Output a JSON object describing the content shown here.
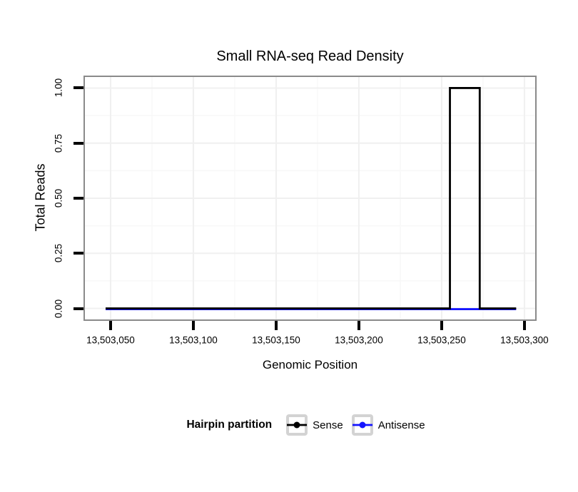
{
  "chart_data": {
    "type": "line",
    "title": "Small RNA-seq Read Density",
    "xlabel": "Genomic Position",
    "ylabel": "Total Reads",
    "xlim": [
      13503034.5,
      13503306.5
    ],
    "ylim": [
      -0.05,
      1.05
    ],
    "grid": true,
    "x_ticks": {
      "values": [
        13503050,
        13503100,
        13503150,
        13503200,
        13503250,
        13503300
      ],
      "labels": [
        "13,503,050",
        "13,503,100",
        "13,503,150",
        "13,503,200",
        "13,503,250",
        "13,503,300"
      ]
    },
    "x_minor_ticks": [
      13503075,
      13503125,
      13503175,
      13503225,
      13503275
    ],
    "y_ticks": {
      "values": [
        0,
        0.25,
        0.5,
        0.75,
        1
      ],
      "labels": [
        "0.00",
        "0.25",
        "0.50",
        "0.75",
        "1.00"
      ]
    },
    "y_minor_ticks": [
      0.125,
      0.375,
      0.625,
      0.875
    ],
    "legend_title": "Hairpin partition",
    "legend_position": "bottom",
    "series": [
      {
        "name": "Sense",
        "color": "#000000",
        "x": [
          13503047,
          13503255,
          13503255,
          13503273,
          13503273,
          13503295
        ],
        "y": [
          0,
          0,
          1,
          1,
          0,
          0
        ]
      },
      {
        "name": "Antisense",
        "color": "#1414ff",
        "x": [
          13503047,
          13503295
        ],
        "y": [
          0,
          0
        ]
      }
    ]
  },
  "legend": {
    "title": "Hairpin partition",
    "items": [
      {
        "label": "Sense",
        "color": "#000000"
      },
      {
        "label": "Antisense",
        "color": "#1414ff"
      }
    ]
  },
  "colors": {
    "background": "#ffffff",
    "panel_border": "#8a8a8a",
    "grid_major": "#f0f0f0",
    "grid_minor": "#f8f8f8",
    "tick": "#000000",
    "key_border": "#d3d3d3",
    "text": "#000000"
  }
}
